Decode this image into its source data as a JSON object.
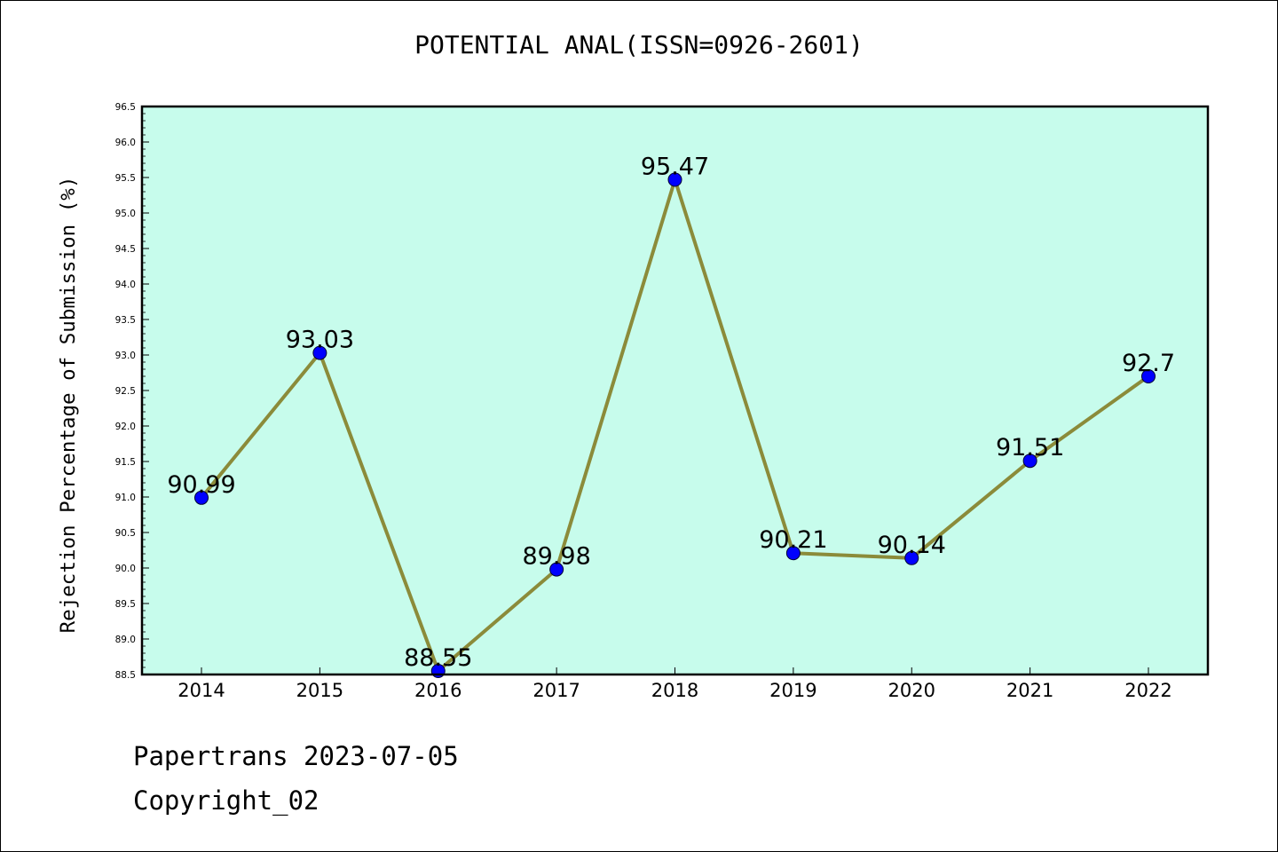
{
  "chart_data": {
    "type": "line",
    "title": "POTENTIAL ANAL(ISSN=0926-2601)",
    "xlabel": "",
    "ylabel": "Rejection Percentage of Submission (%)",
    "categories": [
      "2014",
      "2015",
      "2016",
      "2017",
      "2018",
      "2019",
      "2020",
      "2021",
      "2022"
    ],
    "series": [
      {
        "values": [
          90.99,
          93.03,
          88.55,
          89.98,
          95.47,
          90.21,
          90.14,
          91.51,
          92.7
        ]
      }
    ],
    "data_labels": [
      "90.99",
      "93.03",
      "88.55",
      "89.98",
      "95.47",
      "90.21",
      "90.14",
      "91.51",
      "92.7"
    ],
    "ylim": [
      88.5,
      96.5
    ],
    "y_ticks": [
      "88.5",
      "89.0",
      "89.5",
      "90.0",
      "90.5",
      "91.0",
      "91.5",
      "92.0",
      "92.5",
      "93.0",
      "93.5",
      "94.0",
      "94.5",
      "95.0",
      "95.5",
      "96.0",
      "96.5"
    ],
    "grid": false,
    "colors": {
      "plot_background": "#c7fcec",
      "line": "#8b8b3a",
      "marker": "#0000ff"
    }
  },
  "footer": {
    "date_line": "Papertrans 2023-07-05",
    "copyright_line": "Copyright_02"
  }
}
